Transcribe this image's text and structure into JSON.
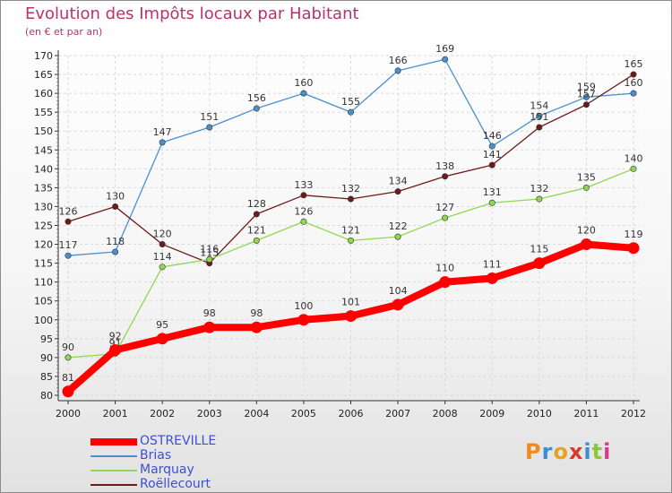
{
  "title": "Evolution des Impôts locaux par Habitant",
  "subtitle": "(en € et par an)",
  "logo_text": "Proxiti",
  "chart_data": {
    "type": "line",
    "title": "Evolution des Impôts locaux par Habitant",
    "subtitle": "(en € et par an)",
    "x": [
      "2000",
      "2001",
      "2002",
      "2003",
      "2004",
      "2005",
      "2006",
      "2007",
      "2008",
      "2009",
      "2010",
      "2011",
      "2012"
    ],
    "ylim": [
      80,
      170
    ],
    "yticks": [
      80,
      85,
      90,
      95,
      100,
      105,
      110,
      115,
      120,
      125,
      130,
      135,
      140,
      145,
      150,
      155,
      160,
      165,
      170
    ],
    "grid": true,
    "legend_position": "bottom-left",
    "series": [
      {
        "name": "Brias",
        "color": "#4a90d0",
        "values": [
          117,
          118,
          147,
          151,
          156,
          160,
          155,
          166,
          169,
          146,
          154,
          159,
          160
        ]
      },
      {
        "name": "Roëllecourt",
        "color": "#6e1a1a",
        "values": [
          126,
          130,
          120,
          115,
          128,
          133,
          132,
          134,
          138,
          141,
          151,
          157,
          165
        ]
      },
      {
        "name": "Marquay",
        "color": "#8ed850",
        "values": [
          90,
          91,
          114,
          116,
          121,
          126,
          121,
          122,
          127,
          131,
          132,
          135,
          140
        ]
      },
      {
        "name": "OSTREVILLE",
        "color": "#ff0000",
        "values": [
          81,
          92,
          95,
          98,
          98,
          100,
          101,
          104,
          110,
          111,
          115,
          120,
          119
        ]
      }
    ],
    "legend": [
      "OSTREVILLE",
      "Brias",
      "Marquay",
      "Roëllecourt"
    ]
  }
}
